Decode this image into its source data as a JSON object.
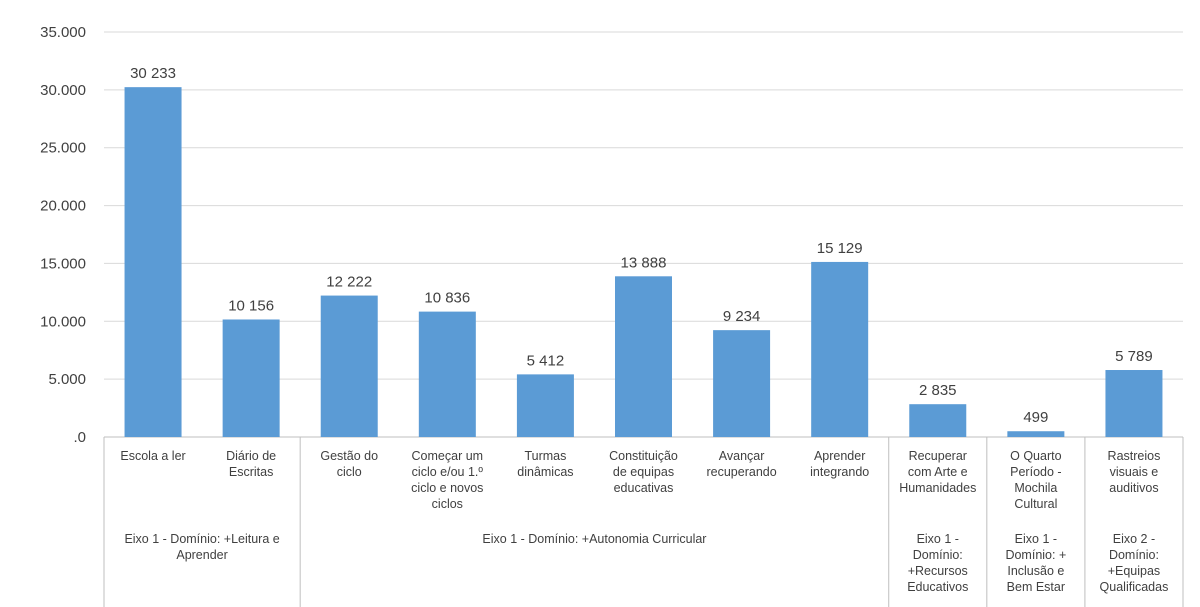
{
  "chart_data": {
    "type": "bar",
    "title": "",
    "ylim": [
      0,
      35000
    ],
    "y_ticks": [
      {
        "value": 0,
        "label": ".0"
      },
      {
        "value": 5000,
        "label": "5.000"
      },
      {
        "value": 10000,
        "label": "10.000"
      },
      {
        "value": 15000,
        "label": "15.000"
      },
      {
        "value": 20000,
        "label": "20.000"
      },
      {
        "value": 25000,
        "label": "25.000"
      },
      {
        "value": 30000,
        "label": "30.000"
      },
      {
        "value": 35000,
        "label": "35.000"
      }
    ],
    "grid": true,
    "bar_color": "#5B9BD5",
    "categories": [
      [
        "Escola a ler"
      ],
      [
        "Diário de",
        "Escritas"
      ],
      [
        "Gestão do",
        "ciclo"
      ],
      [
        "Começar um",
        "ciclo e/ou 1.º",
        "ciclo e novos",
        "ciclos"
      ],
      [
        "Turmas",
        "dinâmicas"
      ],
      [
        "Constituição",
        "de equipas",
        "educativas"
      ],
      [
        "Avançar",
        "recuperando"
      ],
      [
        "Aprender",
        "integrando"
      ],
      [
        "Recuperar",
        "com Arte e",
        "Humanidades"
      ],
      [
        "O Quarto",
        "Período -",
        "Mochila",
        "Cultural"
      ],
      [
        "Rastreios",
        "visuais e",
        "auditivos"
      ]
    ],
    "values": [
      30233,
      10156,
      12222,
      10836,
      5412,
      13888,
      9234,
      15129,
      2835,
      499,
      5789
    ],
    "data_labels": [
      "30 233",
      "10 156",
      "12 222",
      "10 836",
      "5 412",
      "13 888",
      "9 234",
      "15 129",
      "2 835",
      "499",
      "5 789"
    ],
    "groups": [
      {
        "label": [
          "Eixo 1 - Domínio: +Leitura e",
          "Aprender"
        ],
        "start": 0,
        "end": 1
      },
      {
        "label": [
          "Eixo 1 - Domínio: +Autonomia Curricular"
        ],
        "start": 2,
        "end": 7
      },
      {
        "label": [
          "Eixo 1 -",
          "Domínio:",
          "+Recursos",
          "Educativos"
        ],
        "start": 8,
        "end": 8
      },
      {
        "label": [
          "Eixo 1 -",
          "Domínio: +",
          "Inclusão e",
          "Bem Estar"
        ],
        "start": 9,
        "end": 9
      },
      {
        "label": [
          "Eixo 2 -",
          "Domínio:",
          "+Equipas",
          "Qualificadas"
        ],
        "start": 10,
        "end": 10
      }
    ]
  }
}
